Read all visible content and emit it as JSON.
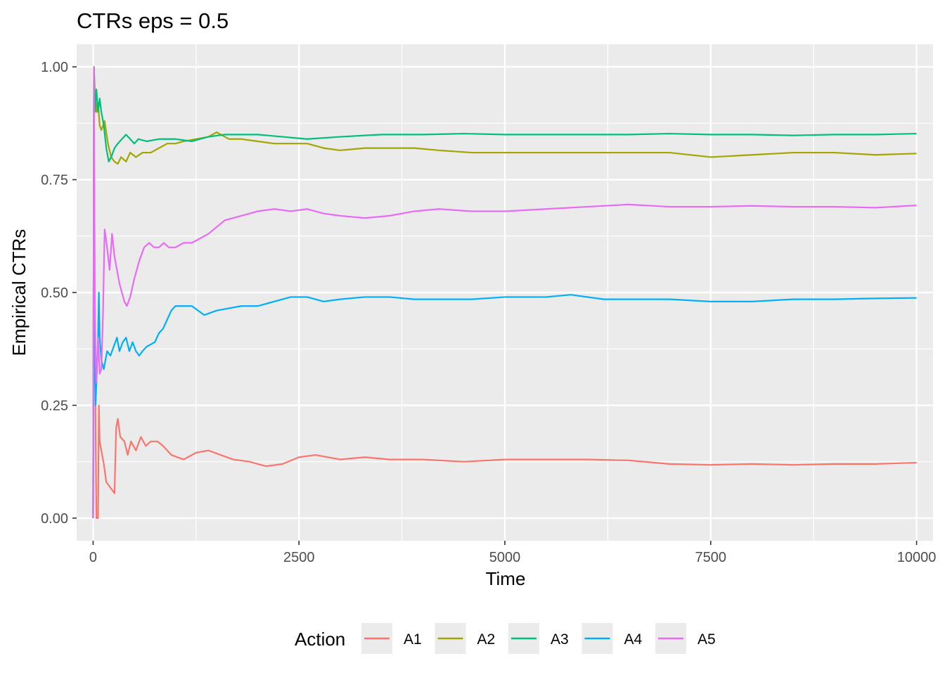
{
  "chart_data": {
    "type": "line",
    "title": "CTRs eps = 0.5",
    "xlabel": "Time",
    "ylabel": "Empirical CTRs",
    "xlim": [
      -200,
      10200
    ],
    "ylim": [
      -0.05,
      1.05
    ],
    "x_ticks": [
      0,
      2500,
      5000,
      7500,
      10000
    ],
    "x_tick_labels": [
      "0",
      "2500",
      "5000",
      "7500",
      "10000"
    ],
    "y_ticks": [
      0,
      0.25,
      0.5,
      0.75,
      1.0
    ],
    "y_tick_labels": [
      "0.00",
      "0.25",
      "0.50",
      "0.75",
      "1.00"
    ],
    "grid": true,
    "legend": {
      "title": "Action",
      "position": "bottom"
    },
    "series": [
      {
        "name": "A1",
        "color": "#F8766D",
        "points": [
          [
            0,
            0
          ],
          [
            10,
            1
          ],
          [
            20,
            0.5
          ],
          [
            30,
            0.2
          ],
          [
            40,
            0.0
          ],
          [
            60,
            0.0
          ],
          [
            70,
            0.25
          ],
          [
            80,
            0.17
          ],
          [
            100,
            0.15
          ],
          [
            130,
            0.12
          ],
          [
            160,
            0.08
          ],
          [
            200,
            0.07
          ],
          [
            240,
            0.06
          ],
          [
            260,
            0.055
          ],
          [
            280,
            0.2
          ],
          [
            300,
            0.22
          ],
          [
            330,
            0.18
          ],
          [
            380,
            0.17
          ],
          [
            420,
            0.14
          ],
          [
            460,
            0.17
          ],
          [
            520,
            0.15
          ],
          [
            580,
            0.18
          ],
          [
            640,
            0.16
          ],
          [
            700,
            0.17
          ],
          [
            780,
            0.17
          ],
          [
            850,
            0.16
          ],
          [
            950,
            0.14
          ],
          [
            1100,
            0.13
          ],
          [
            1250,
            0.145
          ],
          [
            1400,
            0.15
          ],
          [
            1550,
            0.14
          ],
          [
            1700,
            0.13
          ],
          [
            1900,
            0.125
          ],
          [
            2100,
            0.115
          ],
          [
            2300,
            0.12
          ],
          [
            2500,
            0.135
          ],
          [
            2700,
            0.14
          ],
          [
            3000,
            0.13
          ],
          [
            3300,
            0.135
          ],
          [
            3600,
            0.13
          ],
          [
            4000,
            0.13
          ],
          [
            4500,
            0.125
          ],
          [
            5000,
            0.13
          ],
          [
            5500,
            0.13
          ],
          [
            6000,
            0.13
          ],
          [
            6500,
            0.128
          ],
          [
            7000,
            0.12
          ],
          [
            7500,
            0.118
          ],
          [
            8000,
            0.12
          ],
          [
            8500,
            0.118
          ],
          [
            9000,
            0.12
          ],
          [
            9500,
            0.12
          ],
          [
            10000,
            0.123
          ]
        ]
      },
      {
        "name": "A2",
        "color": "#A3A500",
        "points": [
          [
            0,
            0
          ],
          [
            10,
            1
          ],
          [
            20,
            0.95
          ],
          [
            40,
            0.9
          ],
          [
            60,
            0.92
          ],
          [
            80,
            0.87
          ],
          [
            100,
            0.86
          ],
          [
            140,
            0.88
          ],
          [
            180,
            0.83
          ],
          [
            220,
            0.8
          ],
          [
            260,
            0.79
          ],
          [
            300,
            0.785
          ],
          [
            340,
            0.8
          ],
          [
            400,
            0.79
          ],
          [
            450,
            0.81
          ],
          [
            520,
            0.8
          ],
          [
            600,
            0.81
          ],
          [
            700,
            0.81
          ],
          [
            800,
            0.82
          ],
          [
            900,
            0.83
          ],
          [
            1000,
            0.83
          ],
          [
            1100,
            0.835
          ],
          [
            1250,
            0.84
          ],
          [
            1400,
            0.845
          ],
          [
            1500,
            0.855
          ],
          [
            1650,
            0.84
          ],
          [
            1800,
            0.84
          ],
          [
            2000,
            0.835
          ],
          [
            2200,
            0.83
          ],
          [
            2400,
            0.83
          ],
          [
            2600,
            0.83
          ],
          [
            2800,
            0.82
          ],
          [
            3000,
            0.815
          ],
          [
            3300,
            0.82
          ],
          [
            3600,
            0.82
          ],
          [
            3900,
            0.82
          ],
          [
            4200,
            0.815
          ],
          [
            4600,
            0.81
          ],
          [
            5000,
            0.81
          ],
          [
            5500,
            0.81
          ],
          [
            6000,
            0.81
          ],
          [
            6500,
            0.81
          ],
          [
            7000,
            0.81
          ],
          [
            7500,
            0.8
          ],
          [
            8000,
            0.805
          ],
          [
            8500,
            0.81
          ],
          [
            9000,
            0.81
          ],
          [
            9500,
            0.805
          ],
          [
            10000,
            0.808
          ]
        ]
      },
      {
        "name": "A3",
        "color": "#00BF7D",
        "points": [
          [
            0,
            0
          ],
          [
            10,
            1
          ],
          [
            20,
            0.9
          ],
          [
            40,
            0.95
          ],
          [
            60,
            0.9
          ],
          [
            80,
            0.93
          ],
          [
            100,
            0.9
          ],
          [
            130,
            0.87
          ],
          [
            160,
            0.82
          ],
          [
            190,
            0.79
          ],
          [
            220,
            0.8
          ],
          [
            260,
            0.82
          ],
          [
            300,
            0.83
          ],
          [
            350,
            0.84
          ],
          [
            400,
            0.85
          ],
          [
            450,
            0.84
          ],
          [
            500,
            0.83
          ],
          [
            550,
            0.84
          ],
          [
            650,
            0.835
          ],
          [
            800,
            0.84
          ],
          [
            1000,
            0.84
          ],
          [
            1200,
            0.835
          ],
          [
            1400,
            0.845
          ],
          [
            1600,
            0.85
          ],
          [
            1800,
            0.85
          ],
          [
            2000,
            0.85
          ],
          [
            2300,
            0.845
          ],
          [
            2600,
            0.84
          ],
          [
            3000,
            0.845
          ],
          [
            3500,
            0.85
          ],
          [
            4000,
            0.85
          ],
          [
            4500,
            0.852
          ],
          [
            5000,
            0.85
          ],
          [
            5500,
            0.85
          ],
          [
            6000,
            0.85
          ],
          [
            6500,
            0.85
          ],
          [
            7000,
            0.852
          ],
          [
            7500,
            0.85
          ],
          [
            8000,
            0.85
          ],
          [
            8500,
            0.848
          ],
          [
            9000,
            0.85
          ],
          [
            9500,
            0.85
          ],
          [
            10000,
            0.852
          ]
        ]
      },
      {
        "name": "A4",
        "color": "#00B0F6",
        "points": [
          [
            0,
            0
          ],
          [
            10,
            0.5
          ],
          [
            20,
            0.35
          ],
          [
            30,
            0.25
          ],
          [
            40,
            0.3
          ],
          [
            60,
            0.4
          ],
          [
            70,
            0.5
          ],
          [
            80,
            0.4
          ],
          [
            100,
            0.35
          ],
          [
            130,
            0.33
          ],
          [
            170,
            0.37
          ],
          [
            210,
            0.36
          ],
          [
            250,
            0.38
          ],
          [
            290,
            0.4
          ],
          [
            320,
            0.37
          ],
          [
            360,
            0.39
          ],
          [
            400,
            0.4
          ],
          [
            440,
            0.37
          ],
          [
            480,
            0.39
          ],
          [
            520,
            0.37
          ],
          [
            560,
            0.36
          ],
          [
            600,
            0.37
          ],
          [
            650,
            0.38
          ],
          [
            700,
            0.385
          ],
          [
            750,
            0.39
          ],
          [
            800,
            0.41
          ],
          [
            850,
            0.42
          ],
          [
            900,
            0.44
          ],
          [
            950,
            0.46
          ],
          [
            1000,
            0.47
          ],
          [
            1100,
            0.47
          ],
          [
            1200,
            0.47
          ],
          [
            1350,
            0.45
          ],
          [
            1500,
            0.46
          ],
          [
            1650,
            0.465
          ],
          [
            1800,
            0.47
          ],
          [
            2000,
            0.47
          ],
          [
            2200,
            0.48
          ],
          [
            2400,
            0.49
          ],
          [
            2600,
            0.49
          ],
          [
            2800,
            0.48
          ],
          [
            3000,
            0.485
          ],
          [
            3300,
            0.49
          ],
          [
            3600,
            0.49
          ],
          [
            3900,
            0.485
          ],
          [
            4200,
            0.485
          ],
          [
            4600,
            0.485
          ],
          [
            5000,
            0.49
          ],
          [
            5500,
            0.49
          ],
          [
            5800,
            0.495
          ],
          [
            6200,
            0.485
          ],
          [
            6600,
            0.485
          ],
          [
            7000,
            0.485
          ],
          [
            7500,
            0.48
          ],
          [
            8000,
            0.48
          ],
          [
            8500,
            0.485
          ],
          [
            9000,
            0.485
          ],
          [
            9500,
            0.487
          ],
          [
            10000,
            0.488
          ]
        ]
      },
      {
        "name": "A5",
        "color": "#E76BF3",
        "points": [
          [
            0,
            0
          ],
          [
            10,
            1
          ],
          [
            20,
            0.5
          ],
          [
            30,
            0.35
          ],
          [
            40,
            0.3
          ],
          [
            60,
            0.4
          ],
          [
            80,
            0.32
          ],
          [
            100,
            0.33
          ],
          [
            120,
            0.45
          ],
          [
            140,
            0.64
          ],
          [
            170,
            0.6
          ],
          [
            200,
            0.55
          ],
          [
            230,
            0.63
          ],
          [
            260,
            0.58
          ],
          [
            290,
            0.55
          ],
          [
            320,
            0.52
          ],
          [
            350,
            0.5
          ],
          [
            380,
            0.48
          ],
          [
            410,
            0.47
          ],
          [
            450,
            0.49
          ],
          [
            500,
            0.53
          ],
          [
            560,
            0.57
          ],
          [
            620,
            0.6
          ],
          [
            680,
            0.61
          ],
          [
            740,
            0.6
          ],
          [
            800,
            0.6
          ],
          [
            860,
            0.61
          ],
          [
            920,
            0.6
          ],
          [
            1000,
            0.6
          ],
          [
            1100,
            0.61
          ],
          [
            1200,
            0.61
          ],
          [
            1300,
            0.62
          ],
          [
            1400,
            0.63
          ],
          [
            1500,
            0.645
          ],
          [
            1600,
            0.66
          ],
          [
            1700,
            0.665
          ],
          [
            1800,
            0.67
          ],
          [
            2000,
            0.68
          ],
          [
            2200,
            0.685
          ],
          [
            2400,
            0.68
          ],
          [
            2600,
            0.685
          ],
          [
            2800,
            0.675
          ],
          [
            3000,
            0.67
          ],
          [
            3300,
            0.665
          ],
          [
            3600,
            0.67
          ],
          [
            3900,
            0.68
          ],
          [
            4200,
            0.685
          ],
          [
            4600,
            0.68
          ],
          [
            5000,
            0.68
          ],
          [
            5500,
            0.685
          ],
          [
            6000,
            0.69
          ],
          [
            6500,
            0.695
          ],
          [
            7000,
            0.69
          ],
          [
            7500,
            0.69
          ],
          [
            8000,
            0.692
          ],
          [
            8500,
            0.69
          ],
          [
            9000,
            0.69
          ],
          [
            9500,
            0.688
          ],
          [
            10000,
            0.693
          ]
        ]
      }
    ]
  }
}
